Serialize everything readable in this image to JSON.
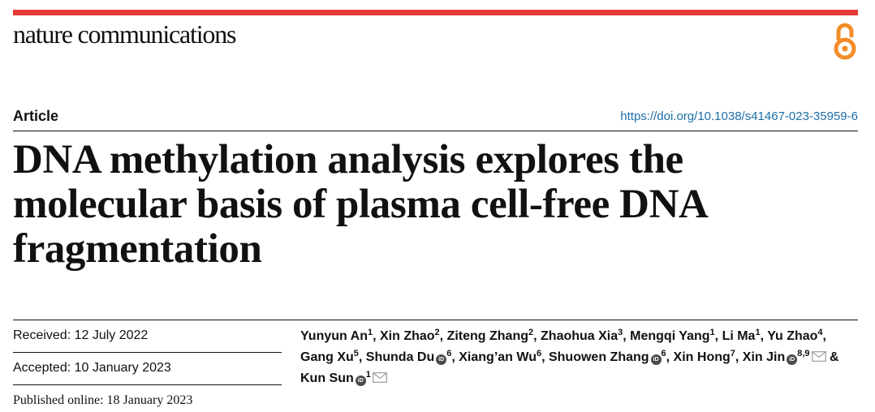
{
  "header": {
    "journal_name": "nature communications",
    "accent_color": "#e53935",
    "open_access_icon": "open-access-lock-icon",
    "open_access_color": "#f28c28"
  },
  "article": {
    "type_label": "Article",
    "doi": "https://doi.org/10.1038/s41467-023-35959-6",
    "title": "DNA methylation analysis explores the molecular basis of plasma cell-free DNA fragmentation"
  },
  "dates": {
    "received": "Received: 12 July 2022",
    "accepted": "Accepted: 10 January 2023",
    "published": "Published online: 18 January 2023"
  },
  "authors": [
    {
      "name": "Yunyun An",
      "sup": "1",
      "orcid": false,
      "email": false
    },
    {
      "name": "Xin Zhao",
      "sup": "2",
      "orcid": false,
      "email": false
    },
    {
      "name": "Ziteng Zhang",
      "sup": "2",
      "orcid": false,
      "email": false
    },
    {
      "name": "Zhaohua Xia",
      "sup": "3",
      "orcid": false,
      "email": false
    },
    {
      "name": "Mengqi Yang",
      "sup": "1",
      "orcid": false,
      "email": false
    },
    {
      "name": "Li Ma",
      "sup": "1",
      "orcid": false,
      "email": false
    },
    {
      "name": "Yu Zhao",
      "sup": "4",
      "orcid": false,
      "email": false
    },
    {
      "name": "Gang Xu",
      "sup": "5",
      "orcid": false,
      "email": false
    },
    {
      "name": "Shunda Du",
      "sup": "6",
      "orcid": true,
      "email": false
    },
    {
      "name": "Xiang’an Wu",
      "sup": "6",
      "orcid": false,
      "email": false
    },
    {
      "name": "Shuowen Zhang",
      "sup": "6",
      "orcid": true,
      "email": false
    },
    {
      "name": "Xin Hong",
      "sup": "7",
      "orcid": false,
      "email": false
    },
    {
      "name": "Xin Jin",
      "sup": "8,9",
      "orcid": true,
      "email": true
    },
    {
      "name": "Kun Sun",
      "sup": "1",
      "orcid": true,
      "email": true
    }
  ],
  "author_separators": {
    "comma": ", ",
    "last": " & "
  },
  "orcid_label": "iD"
}
